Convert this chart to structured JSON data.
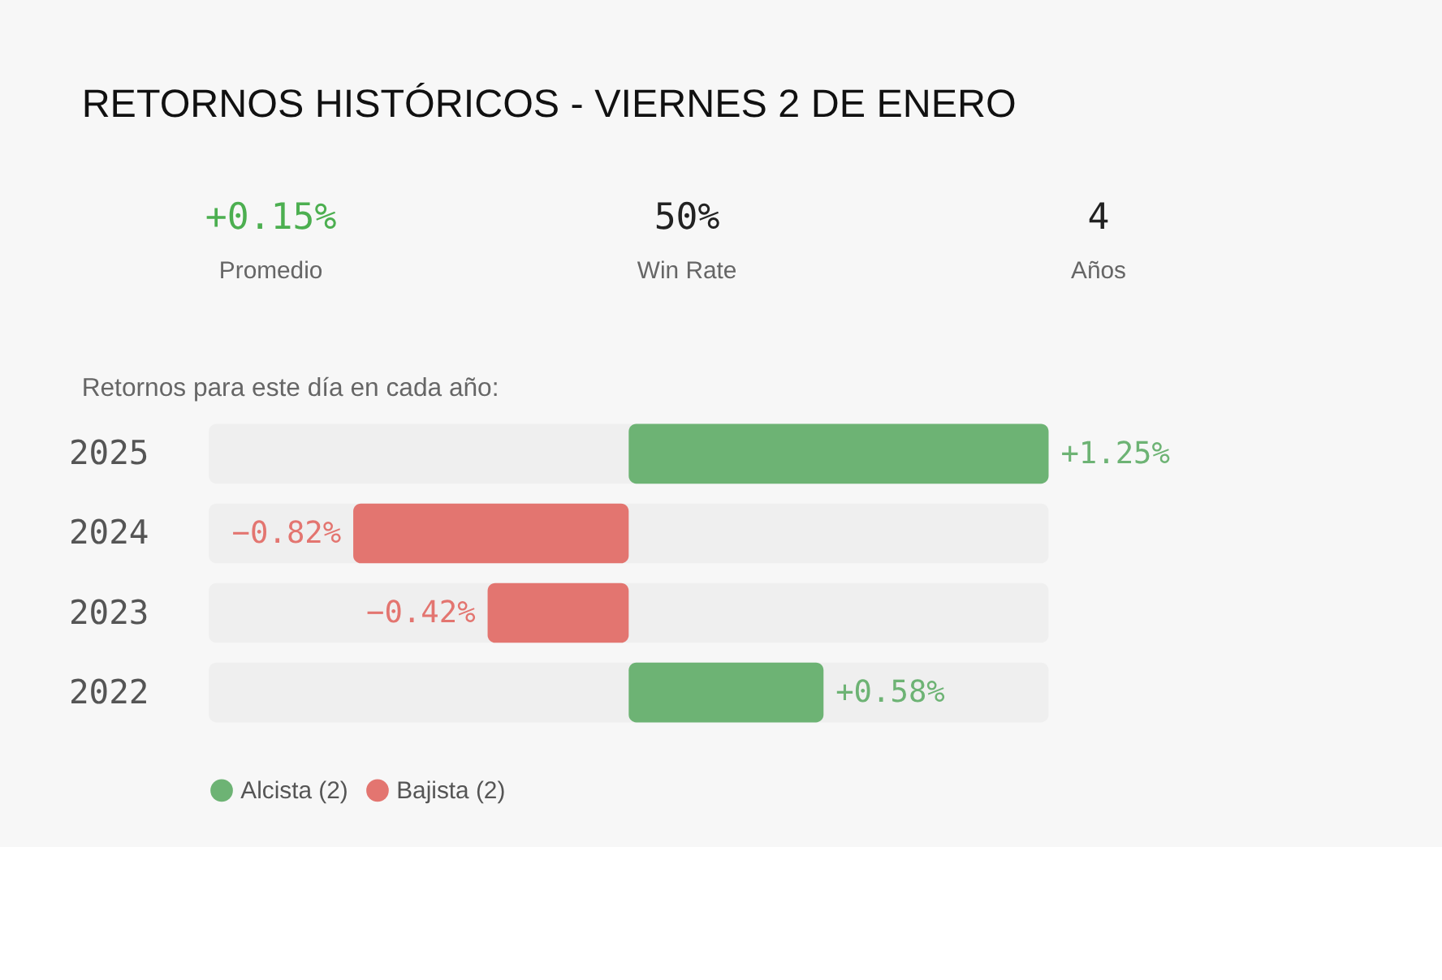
{
  "chart_data": {
    "type": "bar",
    "orientation": "horizontal",
    "title": "RETORNOS HISTÓRICOS - VIERNES 2 DE ENERO",
    "subtitle": "Retornos para este día en cada año:",
    "annotations": [
      "+0.15%",
      "Promedio",
      "50%",
      "Win Rate",
      "4",
      "Años"
    ],
    "categories": [
      "2025",
      "2024",
      "2023",
      "2022"
    ],
    "xlim": [
      -1.25,
      1.25
    ],
    "tick_labels": "y",
    "legend": "bottom",
    "series": [
      {
        "name": "Alcista (2)",
        "color": "#6db374",
        "values": [
          1.25,
          null,
          null,
          0.58
        ],
        "value_labels": [
          "+1.25%",
          null,
          null,
          "+0.58%"
        ]
      },
      {
        "name": "Bajista (2)",
        "color": "#e37570",
        "values": [
          null,
          -0.82,
          -0.42,
          null
        ],
        "value_labels": [
          null,
          "−0.82%",
          "−0.42%",
          null
        ]
      }
    ]
  }
}
